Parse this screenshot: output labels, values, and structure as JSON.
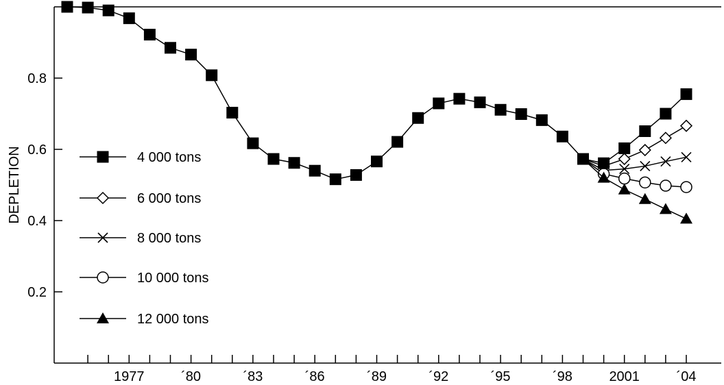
{
  "chart_data": {
    "type": "line",
    "xlabel": "",
    "ylabel": "DEPLETION",
    "xlim": [
      1974,
      2004.5
    ],
    "ylim": [
      0.02,
      1.0
    ],
    "grid": false,
    "legend_position": "left",
    "x_ticks": [
      {
        "x": 1977,
        "label": "1977"
      },
      {
        "x": 1980,
        "label": "´80"
      },
      {
        "x": 1983,
        "label": "´83"
      },
      {
        "x": 1986,
        "label": "´86"
      },
      {
        "x": 1989,
        "label": "´89"
      },
      {
        "x": 1992,
        "label": "´92"
      },
      {
        "x": 1995,
        "label": "´95"
      },
      {
        "x": 1998,
        "label": "´98"
      },
      {
        "x": 2001,
        "label": "2001"
      },
      {
        "x": 2004,
        "label": "´04"
      }
    ],
    "y_ticks": [
      {
        "y": 0.2,
        "label": "0.2"
      },
      {
        "y": 0.4,
        "label": "0.4"
      },
      {
        "y": 0.6,
        "label": "0.6"
      },
      {
        "y": 0.8,
        "label": "0.8"
      }
    ],
    "series": [
      {
        "name": "4 000 tons",
        "marker": "filled-square",
        "x": [
          1974,
          1975,
          1976,
          1977,
          1978,
          1979,
          1980,
          1981,
          1982,
          1983,
          1984,
          1985,
          1986,
          1987,
          1988,
          1989,
          1990,
          1991,
          1992,
          1993,
          1994,
          1995,
          1996,
          1997,
          1998,
          1999,
          2000,
          2001,
          2002,
          2003,
          2004
        ],
        "y": [
          1.0,
          0.998,
          0.99,
          0.968,
          0.922,
          0.885,
          0.866,
          0.808,
          0.703,
          0.617,
          0.573,
          0.562,
          0.54,
          0.516,
          0.528,
          0.566,
          0.621,
          0.688,
          0.729,
          0.742,
          0.732,
          0.711,
          0.699,
          0.682,
          0.636,
          0.573,
          0.561,
          0.603,
          0.651,
          0.7,
          0.755
        ]
      },
      {
        "name": "6 000 tons",
        "marker": "open-diamond",
        "x": [
          2000,
          2001,
          2002,
          2003,
          2004
        ],
        "y": [
          0.553,
          0.573,
          0.598,
          0.632,
          0.666
        ]
      },
      {
        "name": "8 000 tons",
        "marker": "cross",
        "x": [
          2000,
          2001,
          2002,
          2003,
          2004
        ],
        "y": [
          0.541,
          0.545,
          0.553,
          0.566,
          0.578
        ]
      },
      {
        "name": "10 000 tons",
        "marker": "open-circle",
        "x": [
          2000,
          2001,
          2002,
          2003,
          2004
        ],
        "y": [
          0.531,
          0.518,
          0.507,
          0.498,
          0.494
        ]
      },
      {
        "name": "12 000 tons",
        "marker": "filled-triangle",
        "x": [
          2000,
          2001,
          2002,
          2003,
          2004
        ],
        "y": [
          0.52,
          0.487,
          0.46,
          0.432,
          0.405
        ]
      }
    ]
  }
}
